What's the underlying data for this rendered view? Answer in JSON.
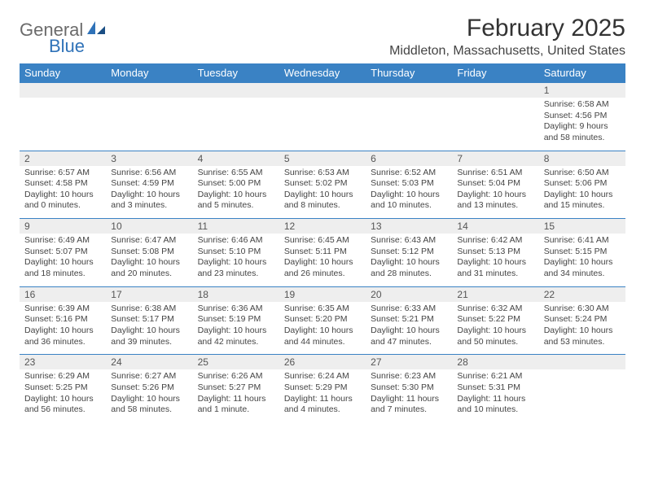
{
  "logo": {
    "text1": "General",
    "text2": "Blue"
  },
  "title": "February 2025",
  "location": "Middleton, Massachusetts, United States",
  "weekday_bg": "#3a82c4",
  "daynum_bg": "#eeeeee",
  "weekdays": [
    "Sunday",
    "Monday",
    "Tuesday",
    "Wednesday",
    "Thursday",
    "Friday",
    "Saturday"
  ],
  "weeks": [
    {
      "nums": [
        "",
        "",
        "",
        "",
        "",
        "",
        "1"
      ],
      "sunrise": [
        "",
        "",
        "",
        "",
        "",
        "",
        "Sunrise: 6:58 AM"
      ],
      "sunset": [
        "",
        "",
        "",
        "",
        "",
        "",
        "Sunset: 4:56 PM"
      ],
      "day1": [
        "",
        "",
        "",
        "",
        "",
        "",
        "Daylight: 9 hours"
      ],
      "day2": [
        "",
        "",
        "",
        "",
        "",
        "",
        "and 58 minutes."
      ]
    },
    {
      "nums": [
        "2",
        "3",
        "4",
        "5",
        "6",
        "7",
        "8"
      ],
      "sunrise": [
        "Sunrise: 6:57 AM",
        "Sunrise: 6:56 AM",
        "Sunrise: 6:55 AM",
        "Sunrise: 6:53 AM",
        "Sunrise: 6:52 AM",
        "Sunrise: 6:51 AM",
        "Sunrise: 6:50 AM"
      ],
      "sunset": [
        "Sunset: 4:58 PM",
        "Sunset: 4:59 PM",
        "Sunset: 5:00 PM",
        "Sunset: 5:02 PM",
        "Sunset: 5:03 PM",
        "Sunset: 5:04 PM",
        "Sunset: 5:06 PM"
      ],
      "day1": [
        "Daylight: 10 hours",
        "Daylight: 10 hours",
        "Daylight: 10 hours",
        "Daylight: 10 hours",
        "Daylight: 10 hours",
        "Daylight: 10 hours",
        "Daylight: 10 hours"
      ],
      "day2": [
        "and 0 minutes.",
        "and 3 minutes.",
        "and 5 minutes.",
        "and 8 minutes.",
        "and 10 minutes.",
        "and 13 minutes.",
        "and 15 minutes."
      ]
    },
    {
      "nums": [
        "9",
        "10",
        "11",
        "12",
        "13",
        "14",
        "15"
      ],
      "sunrise": [
        "Sunrise: 6:49 AM",
        "Sunrise: 6:47 AM",
        "Sunrise: 6:46 AM",
        "Sunrise: 6:45 AM",
        "Sunrise: 6:43 AM",
        "Sunrise: 6:42 AM",
        "Sunrise: 6:41 AM"
      ],
      "sunset": [
        "Sunset: 5:07 PM",
        "Sunset: 5:08 PM",
        "Sunset: 5:10 PM",
        "Sunset: 5:11 PM",
        "Sunset: 5:12 PM",
        "Sunset: 5:13 PM",
        "Sunset: 5:15 PM"
      ],
      "day1": [
        "Daylight: 10 hours",
        "Daylight: 10 hours",
        "Daylight: 10 hours",
        "Daylight: 10 hours",
        "Daylight: 10 hours",
        "Daylight: 10 hours",
        "Daylight: 10 hours"
      ],
      "day2": [
        "and 18 minutes.",
        "and 20 minutes.",
        "and 23 minutes.",
        "and 26 minutes.",
        "and 28 minutes.",
        "and 31 minutes.",
        "and 34 minutes."
      ]
    },
    {
      "nums": [
        "16",
        "17",
        "18",
        "19",
        "20",
        "21",
        "22"
      ],
      "sunrise": [
        "Sunrise: 6:39 AM",
        "Sunrise: 6:38 AM",
        "Sunrise: 6:36 AM",
        "Sunrise: 6:35 AM",
        "Sunrise: 6:33 AM",
        "Sunrise: 6:32 AM",
        "Sunrise: 6:30 AM"
      ],
      "sunset": [
        "Sunset: 5:16 PM",
        "Sunset: 5:17 PM",
        "Sunset: 5:19 PM",
        "Sunset: 5:20 PM",
        "Sunset: 5:21 PM",
        "Sunset: 5:22 PM",
        "Sunset: 5:24 PM"
      ],
      "day1": [
        "Daylight: 10 hours",
        "Daylight: 10 hours",
        "Daylight: 10 hours",
        "Daylight: 10 hours",
        "Daylight: 10 hours",
        "Daylight: 10 hours",
        "Daylight: 10 hours"
      ],
      "day2": [
        "and 36 minutes.",
        "and 39 minutes.",
        "and 42 minutes.",
        "and 44 minutes.",
        "and 47 minutes.",
        "and 50 minutes.",
        "and 53 minutes."
      ]
    },
    {
      "nums": [
        "23",
        "24",
        "25",
        "26",
        "27",
        "28",
        ""
      ],
      "sunrise": [
        "Sunrise: 6:29 AM",
        "Sunrise: 6:27 AM",
        "Sunrise: 6:26 AM",
        "Sunrise: 6:24 AM",
        "Sunrise: 6:23 AM",
        "Sunrise: 6:21 AM",
        ""
      ],
      "sunset": [
        "Sunset: 5:25 PM",
        "Sunset: 5:26 PM",
        "Sunset: 5:27 PM",
        "Sunset: 5:29 PM",
        "Sunset: 5:30 PM",
        "Sunset: 5:31 PM",
        ""
      ],
      "day1": [
        "Daylight: 10 hours",
        "Daylight: 10 hours",
        "Daylight: 11 hours",
        "Daylight: 11 hours",
        "Daylight: 11 hours",
        "Daylight: 11 hours",
        ""
      ],
      "day2": [
        "and 56 minutes.",
        "and 58 minutes.",
        "and 1 minute.",
        "and 4 minutes.",
        "and 7 minutes.",
        "and 10 minutes.",
        ""
      ]
    }
  ]
}
